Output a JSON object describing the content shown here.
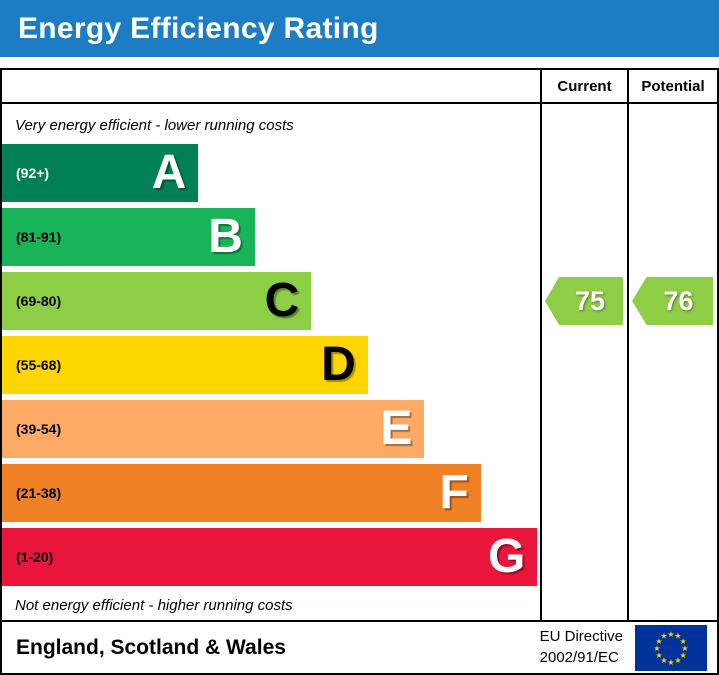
{
  "banner": {
    "title": "Energy Efficiency Rating",
    "bg": "#1d7dc4",
    "fg": "#ffffff"
  },
  "columns": {
    "current": "Current",
    "potential": "Potential"
  },
  "notes": {
    "top": "Very energy efficient - lower running costs",
    "bottom": "Not energy efficient - higher running costs"
  },
  "bands": [
    {
      "letter": "A",
      "range": "(92+)",
      "color": "#008054",
      "width_pct": 36.5,
      "letter_color": "#ffffff",
      "range_color": "#ffffff"
    },
    {
      "letter": "B",
      "range": "(81-91)",
      "color": "#19b459",
      "width_pct": 47.0,
      "letter_color": "#ffffff",
      "range_color": "#000000"
    },
    {
      "letter": "C",
      "range": "(69-80)",
      "color": "#8dce46",
      "width_pct": 57.5,
      "letter_color": "#000000",
      "range_color": "#000000"
    },
    {
      "letter": "D",
      "range": "(55-68)",
      "color": "#ffd500",
      "width_pct": 68.0,
      "letter_color": "#000000",
      "range_color": "#000000"
    },
    {
      "letter": "E",
      "range": "(39-54)",
      "color": "#fcaa65",
      "width_pct": 78.5,
      "letter_color": "#ffffff",
      "range_color": "#000000"
    },
    {
      "letter": "F",
      "range": "(21-38)",
      "color": "#ef8023",
      "width_pct": 89.0,
      "letter_color": "#ffffff",
      "range_color": "#000000"
    },
    {
      "letter": "G",
      "range": "(1-20)",
      "color": "#e9153b",
      "width_pct": 99.5,
      "letter_color": "#ffffff",
      "range_color": "#000000"
    }
  ],
  "ratings": {
    "current": {
      "label": "Current",
      "value": "75",
      "color": "#8dce46",
      "text_color": "#ffffff"
    },
    "potential": {
      "label": "Potential",
      "value": "76",
      "color": "#8dce46",
      "text_color": "#ffffff"
    }
  },
  "footer": {
    "region": "England, Scotland & Wales",
    "directive_line1": "EU Directive",
    "directive_line2": "2002/91/EC",
    "flag_colors": {
      "field": "#003399",
      "stars": "#ffcc00"
    }
  },
  "chart_data": {
    "type": "bar",
    "title": "Energy Efficiency Rating",
    "categories": [
      "A",
      "B",
      "C",
      "D",
      "E",
      "F",
      "G"
    ],
    "band_ranges": [
      "92+",
      "81-91",
      "69-80",
      "55-68",
      "39-54",
      "21-38",
      "1-20"
    ],
    "band_colors": [
      "#008054",
      "#19b459",
      "#8dce46",
      "#ffd500",
      "#fcaa65",
      "#ef8023",
      "#e9153b"
    ],
    "values": [
      36.5,
      47.0,
      57.5,
      68.0,
      78.5,
      89.0,
      99.5
    ],
    "values_note": "bar lengths as percent of chart column width (fixed EPC scale)",
    "markers": [
      {
        "series": "Current",
        "value": 75,
        "band": "C"
      },
      {
        "series": "Potential",
        "value": 76,
        "band": "C"
      }
    ],
    "annotations": [
      "Very energy efficient - lower running costs",
      "Not energy efficient - higher running costs"
    ],
    "footer": "England, Scotland & Wales — EU Directive 2002/91/EC",
    "legend_position": "none",
    "grid": false
  }
}
